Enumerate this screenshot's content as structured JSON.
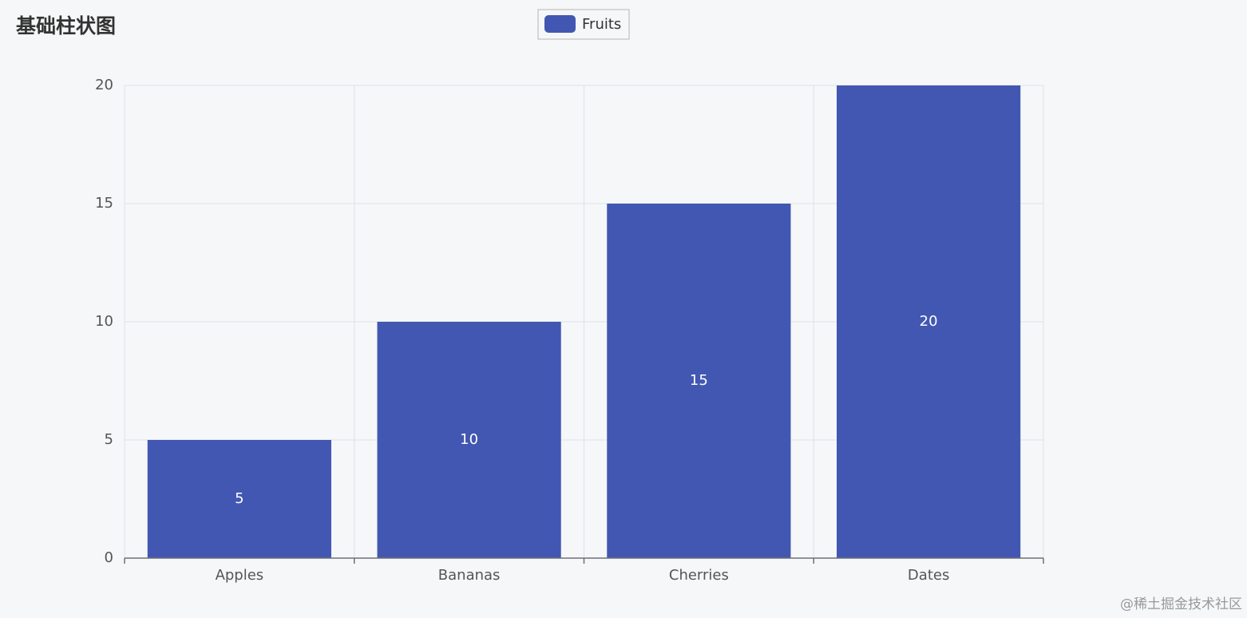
{
  "chart_data": {
    "type": "bar",
    "title": "基础柱状图",
    "categories": [
      "Apples",
      "Bananas",
      "Cherries",
      "Dates"
    ],
    "series": [
      {
        "name": "Fruits",
        "color": "#4257b2",
        "values": [
          5,
          10,
          15,
          20
        ]
      }
    ],
    "ylim": [
      0,
      20
    ],
    "yticks": [
      0,
      5,
      10,
      15,
      20
    ],
    "grid": true,
    "legend": "top",
    "watermark": "@稀土掘金技术社区"
  }
}
